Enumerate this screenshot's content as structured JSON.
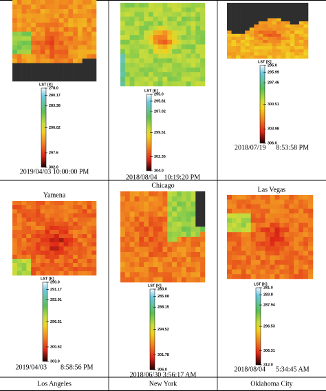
{
  "panels": [
    {
      "colorbar_label": "LST [K]",
      "ticks": [
        "278.0",
        "280.17",
        "283.38",
        "290.02",
        "297.6",
        "302.0"
      ],
      "timestamp": "2019/04/03 10:00:00 PM"
    },
    {
      "colorbar_label": "LST [K]",
      "ticks": [
        "295.0",
        "295.81",
        "297.02",
        "299.51",
        "302.35",
        "304.0"
      ],
      "timestamp": "2018/08/04    10:19:20 PM"
    },
    {
      "colorbar_label": "LST [K]",
      "ticks": [
        "295.0",
        "295.99",
        "297.46",
        "300.51",
        "303.98",
        "306.0"
      ],
      "timestamp": "2018/07/19      8:53:58 PM"
    },
    {
      "title": "Yamena",
      "colorbar_label": "LST [K]",
      "ticks": [
        "290.0",
        "291.17",
        "292.91",
        "296.51",
        "300.62",
        "303.0"
      ],
      "timestamp": "2019/04/03        8:58:56 PM"
    },
    {
      "title": "Chicago",
      "colorbar_label": "LST [K]",
      "ticks": [
        "283.0",
        "285.08",
        "288.15",
        "294.52",
        "301.78",
        "306.0"
      ],
      "timestamp": "2018/06/30 3:56:17 AM"
    },
    {
      "title": "Las Vegas",
      "colorbar_label": "LST [K]",
      "ticks": [
        "281.0",
        "283.8",
        "287.94",
        "296.53",
        "306.31",
        "312.0"
      ],
      "timestamp": "2018/08/04      5:34:45 AM"
    }
  ],
  "column_labels": [
    "Los Angeles",
    "New York",
    "Oklahoma City"
  ]
}
